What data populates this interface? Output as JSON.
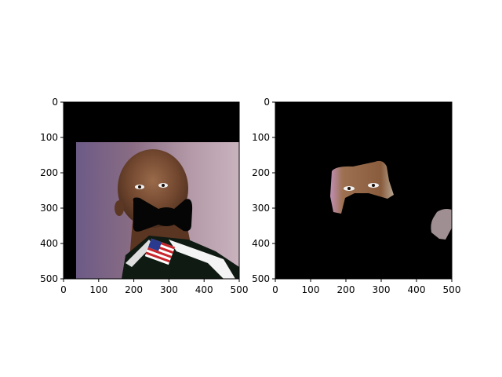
{
  "figure": {
    "panels": [
      {
        "name": "left-image-panel",
        "content": "face-with-black-bowtie-mask",
        "xlim": [
          0,
          500
        ],
        "ylim": [
          0,
          500
        ],
        "xticks": [
          "0",
          "100",
          "200",
          "300",
          "400",
          "500"
        ],
        "yticks": [
          "0",
          "100",
          "200",
          "300",
          "400",
          "500"
        ]
      },
      {
        "name": "right-image-panel",
        "content": "segmented-skin-regions",
        "xlim": [
          0,
          500
        ],
        "ylim": [
          0,
          500
        ],
        "xticks": [
          "0",
          "100",
          "200",
          "300",
          "400",
          "500"
        ],
        "yticks": [
          "0",
          "100",
          "200",
          "300",
          "400",
          "500"
        ]
      }
    ]
  }
}
